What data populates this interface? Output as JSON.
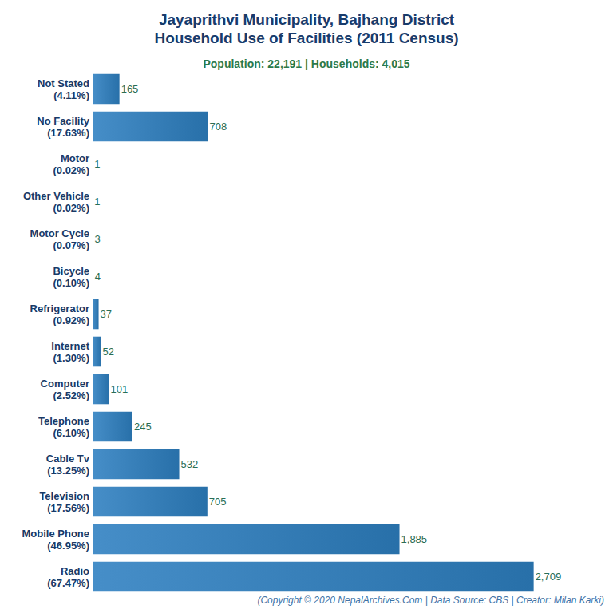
{
  "chart_data": {
    "type": "bar",
    "orientation": "horizontal",
    "title": "Jayaprithvi Municipality, Bajhang District\nHousehold Use of Facilities (2011 Census)",
    "subtitle": "Population: 22,191 | Households: 4,015",
    "caption": "(Copyright © 2020 NepalArchives.Com | Data Source: CBS | Creator: Milan Karki)",
    "categories": [
      "Not Stated\n(4.11%)",
      "No Facility\n(17.63%)",
      "Motor\n(0.02%)",
      "Other Vehicle\n(0.02%)",
      "Motor Cycle\n(0.07%)",
      "Bicycle\n(0.10%)",
      "Refrigerator\n(0.92%)",
      "Internet\n(1.30%)",
      "Computer\n(2.52%)",
      "Telephone\n(6.10%)",
      "Cable Tv\n(13.25%)",
      "Television\n(17.56%)",
      "Mobile Phone\n(46.95%)",
      "Radio\n(67.47%)"
    ],
    "values": [
      165,
      708,
      1,
      1,
      3,
      4,
      37,
      52,
      101,
      245,
      532,
      705,
      1885,
      2709
    ],
    "value_labels": [
      "165",
      "708",
      "1",
      "1",
      "3",
      "4",
      "37",
      "52",
      "101",
      "245",
      "532",
      "705",
      "1,885",
      "2,709"
    ],
    "color": "#2d7fc0",
    "xlim": [
      0,
      3000
    ],
    "data_labels": true,
    "tick_labels": "y",
    "grid": false
  }
}
